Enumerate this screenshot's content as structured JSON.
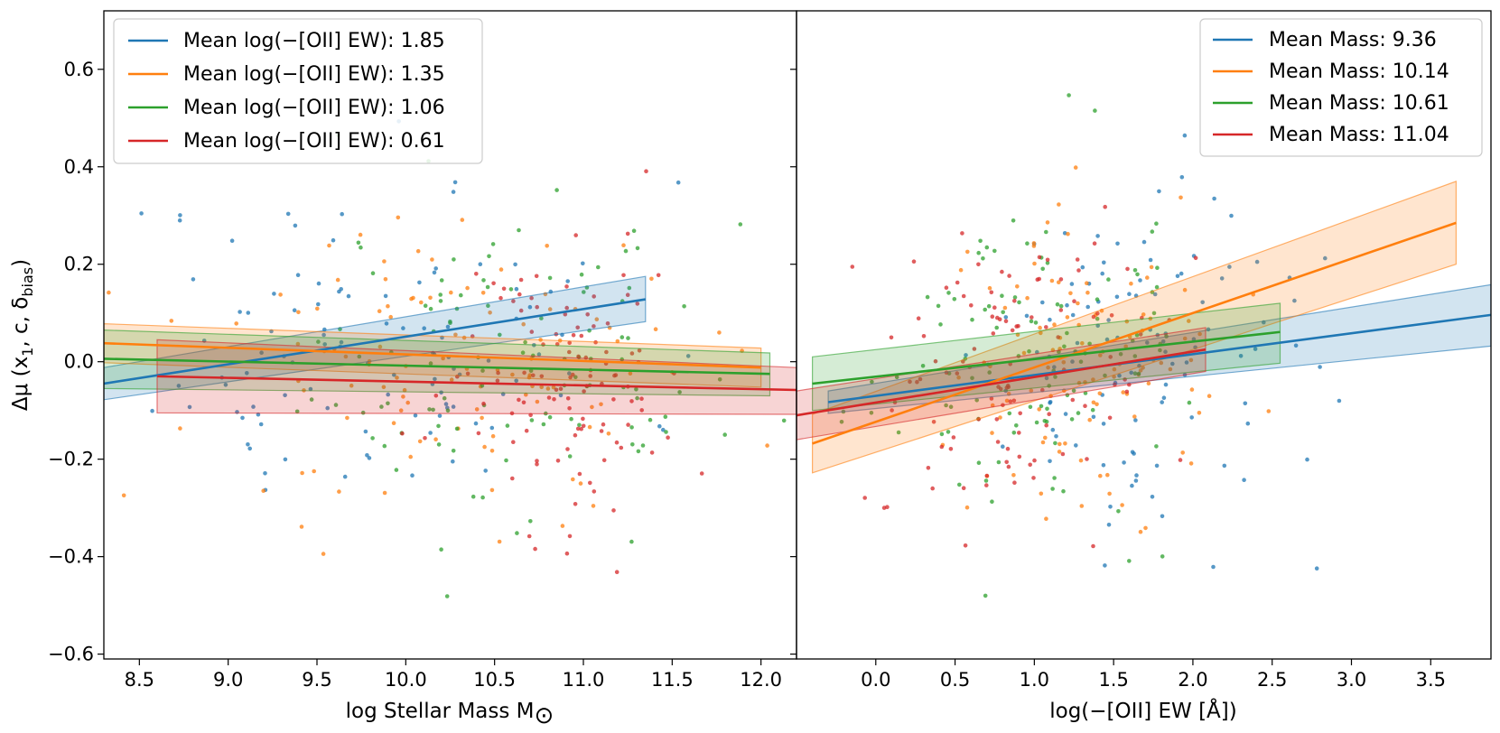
{
  "chart_data": [
    {
      "type": "scatter",
      "panel": "left",
      "title": "",
      "xlabel": "log Stellar Mass M",
      "xlabel_sub": "⊙",
      "ylabel_parts": [
        "Δμ (x",
        "1",
        ", c, δ",
        "bias",
        ")"
      ],
      "xlim": [
        8.3,
        12.2
      ],
      "ylim": [
        -0.61,
        0.72
      ],
      "xticks": [
        8.5,
        9.0,
        9.5,
        10.0,
        10.5,
        11.0,
        11.5,
        12.0
      ],
      "xtick_labels": [
        "8.5",
        "9.0",
        "9.5",
        "10.0",
        "10.5",
        "11.0",
        "11.5",
        "12.0"
      ],
      "yticks": [
        -0.6,
        -0.4,
        -0.2,
        0.0,
        0.2,
        0.4,
        0.6
      ],
      "ytick_labels": [
        "−0.6",
        "−0.4",
        "−0.2",
        "0.0",
        "0.2",
        "0.4",
        "0.6"
      ],
      "legend_position": "upper-left",
      "scatter_seed": 11,
      "series": [
        {
          "name": "Mean log(−[OII] EW): 1.85",
          "color": "#1f77b4",
          "fit_x": [
            8.3,
            11.35
          ],
          "fit_y": [
            -0.045,
            0.128
          ],
          "band_lo": [
            -0.078,
            0.082
          ],
          "band_hi": [
            -0.012,
            0.175
          ],
          "x_mean": 9.8,
          "x_sd": 0.75,
          "y_mean": 0.03,
          "y_sd": 0.17,
          "n": 110
        },
        {
          "name": "Mean log(−[OII] EW): 1.35",
          "color": "#ff7f0e",
          "fit_x": [
            8.3,
            12.0
          ],
          "fit_y": [
            0.038,
            -0.012
          ],
          "band_lo": [
            -0.002,
            -0.052
          ],
          "band_hi": [
            0.078,
            0.028
          ],
          "x_mean": 10.3,
          "x_sd": 0.7,
          "y_mean": 0.0,
          "y_sd": 0.16,
          "n": 110
        },
        {
          "name": "Mean log(−[OII] EW): 1.06",
          "color": "#2ca02c",
          "fit_x": [
            8.3,
            12.05
          ],
          "fit_y": [
            0.006,
            -0.025
          ],
          "band_lo": [
            -0.055,
            -0.07
          ],
          "band_hi": [
            0.065,
            0.018
          ],
          "x_mean": 10.6,
          "x_sd": 0.55,
          "y_mean": 0.0,
          "y_sd": 0.16,
          "n": 110
        },
        {
          "name": "Mean log(−[OII] EW): 0.61",
          "color": "#d62728",
          "fit_x": [
            8.6,
            12.2
          ],
          "fit_y": [
            -0.03,
            -0.058
          ],
          "band_lo": [
            -0.105,
            -0.108
          ],
          "band_hi": [
            0.045,
            -0.012
          ],
          "x_mean": 10.9,
          "x_sd": 0.35,
          "y_mean": -0.03,
          "y_sd": 0.16,
          "n": 110
        }
      ]
    },
    {
      "type": "scatter",
      "panel": "right",
      "title": "",
      "xlabel": "log(−[OII] EW [Å])",
      "xlim": [
        -0.5,
        3.88
      ],
      "ylim": [
        -0.61,
        0.72
      ],
      "xticks": [
        0.0,
        0.5,
        1.0,
        1.5,
        2.0,
        2.5,
        3.0,
        3.5
      ],
      "xtick_labels": [
        "0.0",
        "0.5",
        "1.0",
        "1.5",
        "2.0",
        "2.5",
        "3.0",
        "3.5"
      ],
      "yticks": [
        -0.6,
        -0.4,
        -0.2,
        0.0,
        0.2,
        0.4,
        0.6
      ],
      "legend_position": "upper-right",
      "scatter_seed": 29,
      "series": [
        {
          "name": "Mean Mass: 9.36",
          "color": "#1f77b4",
          "fit_x": [
            -0.3,
            3.88
          ],
          "fit_y": [
            -0.083,
            0.096
          ],
          "band_lo": [
            -0.106,
            0.032
          ],
          "band_hi": [
            -0.06,
            0.158
          ],
          "x_mean": 1.6,
          "x_sd": 0.5,
          "y_mean": 0.02,
          "y_sd": 0.17,
          "n": 110
        },
        {
          "name": "Mean Mass: 10.14",
          "color": "#ff7f0e",
          "fit_x": [
            -0.4,
            3.66
          ],
          "fit_y": [
            -0.168,
            0.285
          ],
          "band_lo": [
            -0.228,
            0.2
          ],
          "band_hi": [
            -0.108,
            0.37
          ],
          "x_mean": 1.2,
          "x_sd": 0.45,
          "y_mean": 0.0,
          "y_sd": 0.16,
          "n": 110
        },
        {
          "name": "Mean Mass: 10.61",
          "color": "#2ca02c",
          "fit_x": [
            -0.4,
            2.55
          ],
          "fit_y": [
            -0.045,
            0.061
          ],
          "band_lo": [
            -0.1,
            -0.003
          ],
          "band_hi": [
            0.01,
            0.12
          ],
          "x_mean": 1.0,
          "x_sd": 0.45,
          "y_mean": 0.0,
          "y_sd": 0.16,
          "n": 110
        },
        {
          "name": "Mean Mass: 11.04",
          "color": "#d62728",
          "fit_x": [
            -0.5,
            2.08
          ],
          "fit_y": [
            -0.11,
            0.025
          ],
          "band_lo": [
            -0.16,
            -0.02
          ],
          "band_hi": [
            -0.06,
            0.07
          ],
          "x_mean": 0.9,
          "x_sd": 0.45,
          "y_mean": -0.02,
          "y_sd": 0.16,
          "n": 110
        }
      ]
    }
  ]
}
